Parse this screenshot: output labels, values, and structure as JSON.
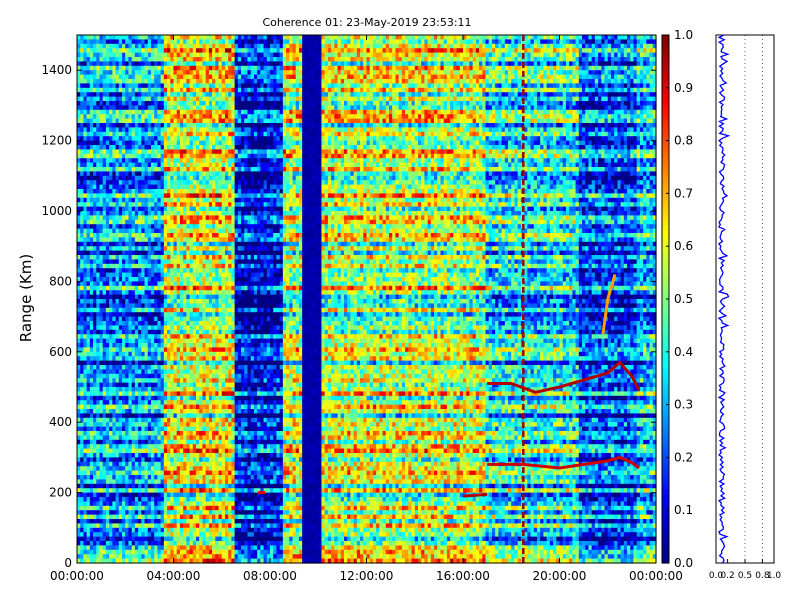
{
  "chart_data": [
    {
      "type": "heatmap",
      "title": "Coherence 01: 23-May-2019 23:53:11",
      "xlabel": "",
      "ylabel": "Range (Km)",
      "x_ticks": [
        "00:00:00",
        "04:00:00",
        "08:00:00",
        "12:00:00",
        "16:00:00",
        "20:00:00",
        "00:00:00"
      ],
      "x_range_hours": [
        0,
        24
      ],
      "y_ticks": [
        0,
        200,
        400,
        600,
        800,
        1000,
        1200,
        1400
      ],
      "ylim": [
        0,
        1500
      ],
      "colormap": "jet",
      "colorbar": {
        "range": [
          0,
          1
        ],
        "ticks": [
          "0.0",
          "0.1",
          "0.2",
          "0.3",
          "0.4",
          "0.5",
          "0.6",
          "0.7",
          "0.8",
          "0.9",
          "1.0"
        ]
      },
      "time_segments_hours": [
        {
          "start": 0.0,
          "end": 3.6,
          "coherence": 0.28
        },
        {
          "start": 3.6,
          "end": 6.6,
          "coherence": 0.58
        },
        {
          "start": 6.6,
          "end": 8.5,
          "coherence": 0.12
        },
        {
          "start": 8.5,
          "end": 9.4,
          "coherence": 0.55
        },
        {
          "start": 9.4,
          "end": 10.2,
          "coherence": 0.02
        },
        {
          "start": 10.2,
          "end": 17.0,
          "coherence": 0.55
        },
        {
          "start": 17.0,
          "end": 20.8,
          "coherence": 0.38
        },
        {
          "start": 20.8,
          "end": 23.2,
          "coherence": 0.2
        },
        {
          "start": 23.2,
          "end": 24.0,
          "coherence": 0.32
        }
      ],
      "features": [
        {
          "type": "vertical_line",
          "x_hours": 18.5,
          "coherence": 0.97
        },
        {
          "type": "trace",
          "coherence": 0.95,
          "points": [
            [
              17.0,
              510
            ],
            [
              18.0,
              510
            ],
            [
              19.0,
              485
            ],
            [
              20.0,
              500
            ],
            [
              21.0,
              520
            ],
            [
              22.0,
              540
            ],
            [
              22.5,
              570
            ],
            [
              23.0,
              530
            ],
            [
              23.3,
              490
            ]
          ]
        },
        {
          "type": "trace",
          "coherence": 0.92,
          "points": [
            [
              17.0,
              280
            ],
            [
              18.5,
              280
            ],
            [
              20.0,
              270
            ],
            [
              21.0,
              280
            ],
            [
              22.0,
              290
            ],
            [
              22.5,
              300
            ],
            [
              23.0,
              285
            ],
            [
              23.3,
              270
            ]
          ]
        },
        {
          "type": "trace",
          "coherence": 0.95,
          "points": [
            [
              16.0,
              190
            ],
            [
              17.0,
              195
            ]
          ]
        },
        {
          "type": "trace",
          "coherence": 0.9,
          "points": [
            [
              7.5,
              200
            ],
            [
              7.8,
              200
            ]
          ]
        },
        {
          "type": "trace",
          "coherence": 0.72,
          "points": [
            [
              21.8,
              650
            ],
            [
              22.0,
              750
            ],
            [
              22.3,
              820
            ]
          ]
        }
      ]
    },
    {
      "type": "line",
      "description_ticks": [
        "0.0",
        "0.2",
        "0.5",
        "0.8",
        "1.0"
      ],
      "xlim": [
        0,
        1
      ],
      "ylim": [
        0,
        1500
      ],
      "series": [
        {
          "color": "#0000ff",
          "mean": 0.1,
          "spread": 0.05
        }
      ],
      "grid_x": [
        0.5,
        0.8
      ]
    }
  ]
}
